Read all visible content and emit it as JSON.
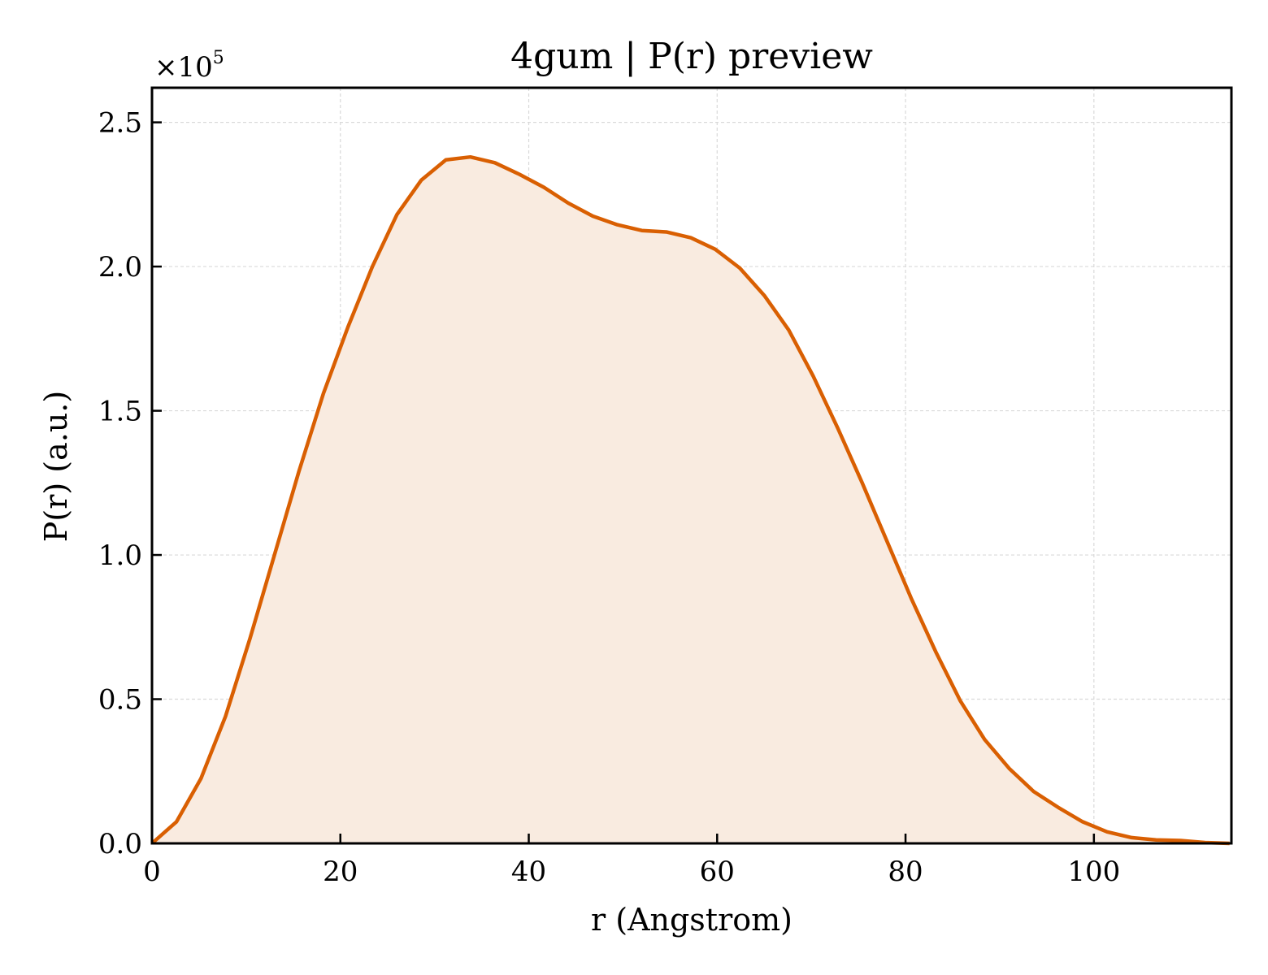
{
  "chart_data": {
    "type": "area",
    "title": "4gum | P(r) preview",
    "xlabel": "r (Angstrom)",
    "ylabel": "P(r) (a.u.)",
    "y_multiplier_base": "×10",
    "y_multiplier_exp": "5",
    "xlim": [
      0,
      114.6
    ],
    "ylim": [
      0,
      2.62
    ],
    "x_ticks": [
      0,
      20,
      40,
      60,
      80,
      100
    ],
    "y_ticks": [
      0.0,
      0.5,
      1.0,
      1.5,
      2.0,
      2.5
    ],
    "x_tick_labels": [
      "0",
      "20",
      "40",
      "60",
      "80",
      "100"
    ],
    "y_tick_labels": [
      "0.0",
      "0.5",
      "1.0",
      "1.5",
      "2.0",
      "2.5"
    ],
    "grid": true,
    "colors": {
      "line": "#d95f02",
      "fill": "#f9ebe0",
      "grid": "#d9d9d9"
    },
    "series": [
      {
        "x": [
          0,
          2.6,
          5.2,
          7.8,
          10.4,
          13.0,
          15.6,
          18.2,
          20.8,
          23.4,
          26.0,
          28.6,
          31.2,
          33.8,
          36.4,
          39.0,
          41.6,
          44.2,
          46.8,
          49.4,
          52.0,
          54.6,
          57.2,
          59.8,
          62.4,
          65.0,
          67.6,
          70.2,
          72.8,
          75.4,
          78.0,
          80.6,
          83.2,
          85.8,
          88.4,
          91.0,
          93.6,
          96.2,
          98.8,
          101.4,
          104.0,
          106.6,
          109.2,
          111.8,
          114.4
        ],
        "values": [
          0.0,
          0.075,
          0.225,
          0.44,
          0.71,
          1.0,
          1.29,
          1.56,
          1.79,
          2.0,
          2.18,
          2.3,
          2.37,
          2.38,
          2.36,
          2.32,
          2.275,
          2.22,
          2.175,
          2.145,
          2.125,
          2.12,
          2.1,
          2.06,
          1.995,
          1.9,
          1.78,
          1.62,
          1.44,
          1.25,
          1.05,
          0.85,
          0.665,
          0.495,
          0.36,
          0.26,
          0.18,
          0.125,
          0.075,
          0.04,
          0.02,
          0.012,
          0.01,
          0.003,
          0.0
        ]
      }
    ]
  }
}
